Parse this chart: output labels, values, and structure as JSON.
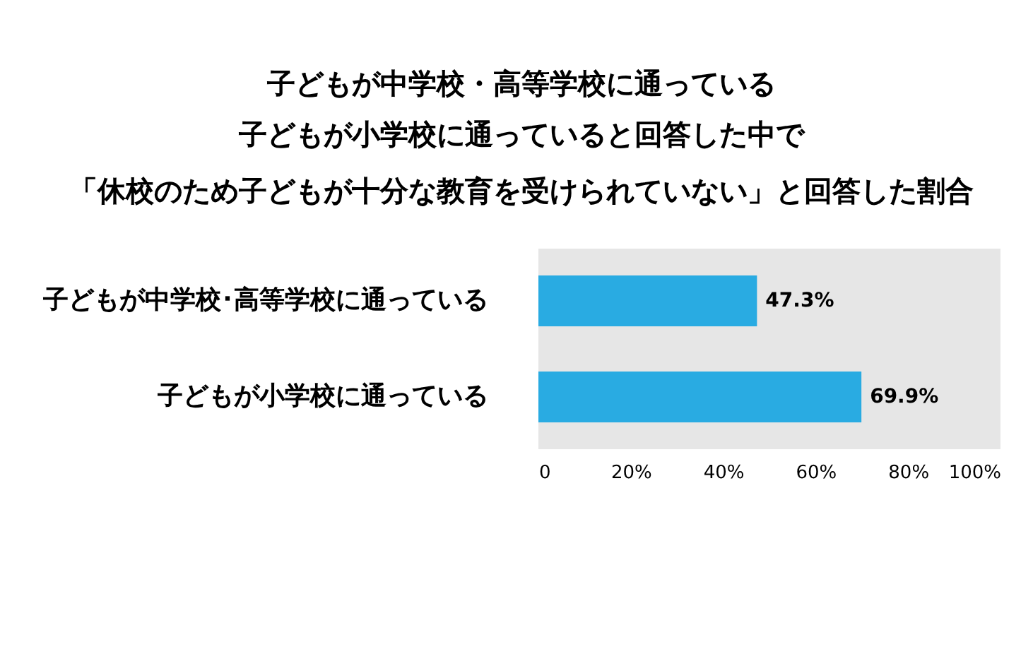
{
  "chart_data": {
    "type": "bar",
    "orientation": "horizontal",
    "title": "子どもが中学校・高等学校に通っている",
    "subtitle": "子どもが小学校に通っていると回答した中で",
    "annotations": [
      "「休校のため子どもが十分な教育を受けられていない」と回答した割合"
    ],
    "categories": [
      "子どもが中学校･高等学校に通っている",
      "子どもが小学校に通っている"
    ],
    "values": [
      47.3,
      69.9
    ],
    "value_labels": [
      "47.3%",
      "69.9%"
    ],
    "color": "#29abe2",
    "xlim": [
      0,
      100
    ],
    "xticks": [
      0,
      {
        "value": 20,
        "label": "20%"
      },
      {
        "value": 40,
        "label": "40%"
      },
      {
        "value": 60,
        "label": "60%"
      },
      {
        "value": 80,
        "label": "80%"
      },
      {
        "value": 100,
        "label": "100%"
      }
    ],
    "grid": false
  }
}
